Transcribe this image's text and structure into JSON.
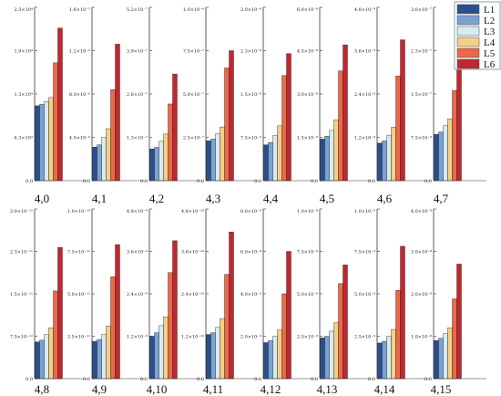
{
  "chart_data": {
    "type": "bar",
    "legend": {
      "placement": "top-right",
      "entries": [
        "L1",
        "L2",
        "L3",
        "L4",
        "L5",
        "L6"
      ]
    },
    "colors": [
      "#2b4f8e",
      "#7ba2d4",
      "#d6ecf2",
      "#f6cf86",
      "#e96a49",
      "#c1272d"
    ],
    "grid": false,
    "panels": [
      {
        "label": "4,0",
        "ylim": [
          0,
          25000.0
        ],
        "yticks": [
          "0.0",
          "6.3×10³",
          "1.3×10⁴",
          "1.9×10⁴",
          "2.5×10⁴"
        ],
        "values": [
          10800.0,
          11000.0,
          11400.0,
          12000.0,
          17000.0,
          22000.0
        ]
      },
      {
        "label": "4,1",
        "ylim": [
          0,
          1.6e-05
        ],
        "yticks": [
          "0.0",
          "4.0×10⁻⁶",
          "8.0×10⁻⁶",
          "1.2×10⁻⁵",
          "1.6×10⁻⁵"
        ],
        "values": [
          3.1e-06,
          3.3e-06,
          4e-06,
          4.8e-06,
          8.4e-06,
          1.26e-05
        ]
      },
      {
        "label": "4,2",
        "ylim": [
          0,
          5.2e-07
        ],
        "yticks": [
          "0.0",
          "1.3×10⁻⁷",
          "2.6×10⁻⁷",
          "3.9×10⁻⁷",
          "5.2×10⁻⁷"
        ],
        "values": [
          9.5e-08,
          1e-07,
          1.18e-07,
          1.4e-07,
          2.3e-07,
          3.2e-07
        ]
      },
      {
        "label": "4,3",
        "ylim": [
          0,
          1e-06
        ],
        "yticks": [
          "0.0",
          "2.5×10⁻⁷",
          "5.0×10⁻⁷",
          "7.5×10⁻⁷",
          "1.0×10⁻⁶"
        ],
        "values": [
          2.3e-07,
          2.4e-07,
          2.7e-07,
          3.1e-07,
          6.5e-07,
          7.5e-07
        ]
      },
      {
        "label": "4,4",
        "ylim": [
          0,
          3e-08
        ],
        "yticks": [
          "0.0",
          "7.5×10⁻⁹",
          "1.5×10⁻⁸",
          "2.3×10⁻⁸",
          "3.0×10⁻⁸"
        ],
        "values": [
          6.2e-09,
          6.6e-09,
          7.8e-09,
          9.5e-09,
          1.82e-08,
          2.2e-08
        ]
      },
      {
        "label": "4,5",
        "ylim": [
          0,
          6e-08
        ],
        "yticks": [
          "0.0",
          "1.5×10⁻⁸",
          "3.0×10⁻⁸",
          "4.5×10⁻⁸",
          "6.0×10⁻⁸"
        ],
        "values": [
          1.44e-08,
          1.54e-08,
          1.74e-08,
          2.1e-08,
          3.8e-08,
          4.7e-08
        ]
      },
      {
        "label": "4,6",
        "ylim": [
          0,
          4.8e-09
        ],
        "yticks": [
          "0.0",
          "1.2×10⁻⁹",
          "2.4×10⁻⁹",
          "3.6×10⁻⁹",
          "4.8×10⁻⁹"
        ],
        "values": [
          1.04e-09,
          1.1e-09,
          1.26e-09,
          1.48e-09,
          2.9e-09,
          3.9e-09
        ]
      },
      {
        "label": "4,7",
        "ylim": [
          0,
          3e-07
        ],
        "yticks": [
          "0.0",
          "7.5×10⁻⁸",
          "1.5×10⁻⁷",
          "2.3×10⁻⁷",
          "3.0×10⁻⁷"
        ],
        "values": [
          8e-08,
          8.4e-08,
          9.5e-08,
          1.07e-07,
          1.56e-07,
          2.22e-07
        ]
      },
      {
        "label": "4,8",
        "ylim": [
          0,
          3e-11
        ],
        "yticks": [
          "0.0",
          "7.5×10⁻¹²",
          "1.5×10⁻¹¹",
          "2.3×10⁻¹¹",
          "3.0×10⁻¹¹"
        ],
        "values": [
          6.5e-12,
          6.8e-12,
          7.8e-12,
          9e-12,
          1.55e-11,
          2.32e-11
        ]
      },
      {
        "label": "4,9",
        "ylim": [
          0,
          1e-10
        ],
        "yticks": [
          "0.0",
          "2.5×10⁻¹¹",
          "5.0×10⁻¹¹",
          "7.5×10⁻¹¹",
          "1.0×10⁻¹⁰"
        ],
        "values": [
          2.2e-11,
          2.3e-11,
          2.6e-11,
          3.1e-11,
          6e-11,
          7.9e-11
        ]
      },
      {
        "label": "4,10",
        "ylim": [
          0,
          4.8e-09
        ],
        "yticks": [
          "0.0",
          "1.2×10⁻⁹",
          "2.4×10⁻⁹",
          "3.6×10⁻⁹",
          "4.8×10⁻⁹"
        ],
        "values": [
          1.2e-09,
          1.3e-09,
          1.5e-09,
          1.75e-09,
          3e-09,
          3.9e-09
        ]
      },
      {
        "label": "4,11",
        "ylim": [
          0,
          4.8e-10
        ],
        "yticks": [
          "0.0",
          "1.2×10⁻¹⁰",
          "2.4×10⁻¹⁰",
          "3.6×10⁻¹⁰",
          "4.8×10⁻¹⁰"
        ],
        "values": [
          1.25e-10,
          1.3e-10,
          1.45e-10,
          1.7e-10,
          2.95e-10,
          4.15e-10
        ]
      },
      {
        "label": "4,12",
        "ylim": [
          0,
          8e-09
        ],
        "yticks": [
          "0.0",
          "2.0×10⁻⁹",
          "4.0×10⁻⁹",
          "6.0×10⁻⁹",
          "8.0×10⁻⁹"
        ],
        "values": [
          1.7e-09,
          1.8e-09,
          2e-09,
          2.3e-09,
          4e-09,
          6e-09
        ]
      },
      {
        "label": "4,13",
        "ylim": [
          0,
          1e-08
        ],
        "yticks": [
          "0.0",
          "2.5×10⁻⁹",
          "5.0×10⁻⁹",
          "7.5×10⁻⁹",
          "1.0×10⁻⁸"
        ],
        "values": [
          2.4e-09,
          2.5e-09,
          2.8e-09,
          3.3e-09,
          5.6e-09,
          6.7e-09
        ]
      },
      {
        "label": "4,14",
        "ylim": [
          0,
          1e-08
        ],
        "yticks": [
          "0.0",
          "2.5×10⁻⁹",
          "5.0×10⁻⁹",
          "7.5×10⁻⁹",
          "1.0×10⁻⁸"
        ],
        "values": [
          2.1e-09,
          2.2e-09,
          2.5e-09,
          2.9e-09,
          5.2e-09,
          7.8e-09
        ]
      },
      {
        "label": "4,15",
        "ylim": [
          0,
          4e-08
        ],
        "yticks": [
          "0.0",
          "1.0×10⁻⁸",
          "2.0×10⁻⁸",
          "3.0×10⁻⁸",
          "4.0×10⁻⁸"
        ],
        "values": [
          9e-09,
          9.5e-09,
          1.06e-08,
          1.2e-08,
          1.88e-08,
          2.7e-08
        ]
      }
    ]
  }
}
